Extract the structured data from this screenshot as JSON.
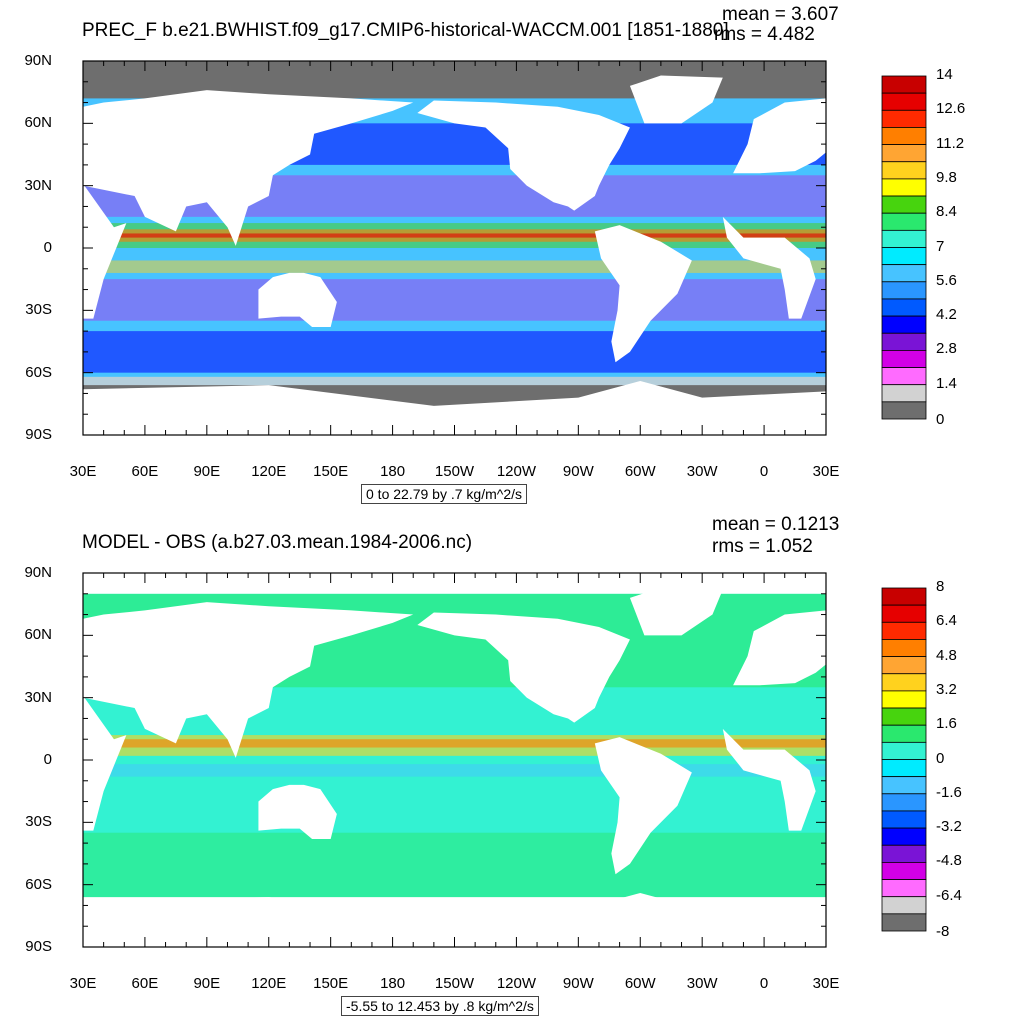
{
  "chart_data": [
    {
      "type": "heatmap",
      "title": "PREC_F b.e21.BWHIST.f09_g17.CMIP6-historical-WACCM.001 [1851-1880]",
      "mean_label": "mean = 3.607",
      "rms_label": "rms = 4.482",
      "range_label": "0 to 22.79 by .7 kg/m^2/s",
      "y_ticks": [
        "90N",
        "60N",
        "30N",
        "0",
        "30S",
        "60S",
        "90S"
      ],
      "x_ticks": [
        "30E",
        "60E",
        "90E",
        "120E",
        "150E",
        "180",
        "150W",
        "120W",
        "90W",
        "60W",
        "30W",
        "0",
        "30E"
      ],
      "xlim": [
        30,
        390
      ],
      "ylim": [
        -90,
        90
      ],
      "colorbar": {
        "labels": [
          "14",
          "12.6",
          "11.2",
          "9.8",
          "8.4",
          "7",
          "5.6",
          "4.2",
          "2.8",
          "1.4",
          "0"
        ],
        "colors": [
          "#c80000",
          "#e60000",
          "#ff2a00",
          "#ff7f00",
          "#ffa533",
          "#ffd21e",
          "#ffff00",
          "#47d40e",
          "#2ae86e",
          "#33f2d2",
          "#00ebff",
          "#47c3ff",
          "#2a96ff",
          "#005aff",
          "#0000ff",
          "#7a14d6",
          "#d200e6",
          "#ff6bff",
          "#d2d2d2",
          "#6e6e6e"
        ]
      }
    },
    {
      "type": "heatmap",
      "title": "MODEL - OBS (a.b27.03.mean.1984-2006.nc)",
      "mean_label": "mean = 0.1213",
      "rms_label": "rms = 1.052",
      "range_label": "-5.55 to 12.453 by .8 kg/m^2/s",
      "y_ticks": [
        "90N",
        "60N",
        "30N",
        "0",
        "30S",
        "60S",
        "90S"
      ],
      "x_ticks": [
        "30E",
        "60E",
        "90E",
        "120E",
        "150E",
        "180",
        "150W",
        "120W",
        "90W",
        "60W",
        "30W",
        "0",
        "30E"
      ],
      "xlim": [
        30,
        390
      ],
      "ylim": [
        -90,
        90
      ],
      "colorbar": {
        "labels": [
          "8",
          "6.4",
          "4.8",
          "3.2",
          "1.6",
          "0",
          "-1.6",
          "-3.2",
          "-4.8",
          "-6.4",
          "-8"
        ],
        "colors": [
          "#c80000",
          "#e60000",
          "#ff2a00",
          "#ff7f00",
          "#ffa533",
          "#ffd21e",
          "#ffff00",
          "#47d40e",
          "#2ae86e",
          "#33f2d2",
          "#00ebff",
          "#47c3ff",
          "#2a96ff",
          "#005aff",
          "#0000ff",
          "#7a14d6",
          "#d200e6",
          "#ff6bff",
          "#d2d2d2",
          "#6e6e6e"
        ]
      }
    }
  ]
}
